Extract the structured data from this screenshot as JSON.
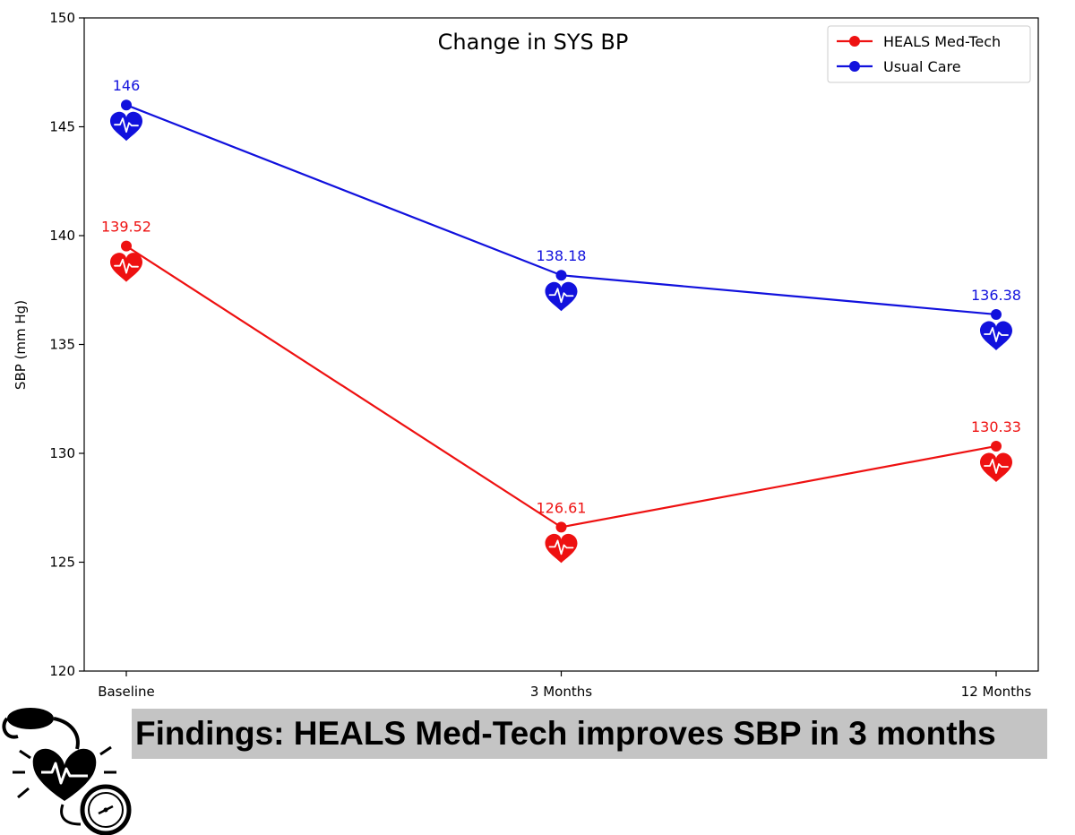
{
  "chart_data": {
    "type": "line",
    "title": "Change in SYS BP",
    "xlabel": "",
    "ylabel": "SBP (mm Hg)",
    "categories": [
      "Baseline",
      "3 Months",
      "12 Months"
    ],
    "ylim": [
      120,
      150
    ],
    "yticks": [
      120,
      125,
      130,
      135,
      140,
      145,
      150
    ],
    "grid": false,
    "legend_position": "top-right",
    "marker_decoration": "heart-pulse-icon",
    "series": [
      {
        "name": "HEALS Med-Tech",
        "color": "#ee1111",
        "values": [
          139.52,
          126.61,
          130.33
        ],
        "labels": [
          "139.52",
          "126.61",
          "130.33"
        ]
      },
      {
        "name": "Usual Care",
        "color": "#1111dd",
        "values": [
          146,
          138.18,
          136.38
        ],
        "labels": [
          "146",
          "138.18",
          "136.38"
        ]
      }
    ]
  },
  "findings": {
    "text": "Findings: HEALS Med-Tech improves SBP in 3 months"
  },
  "illustration": {
    "icon": "blood-pressure-monitor-icon"
  }
}
